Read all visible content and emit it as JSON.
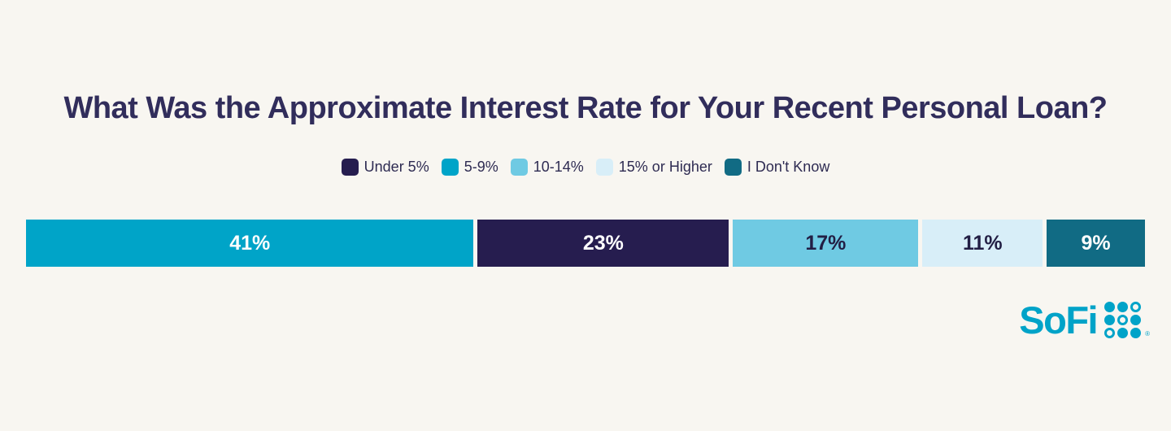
{
  "page": {
    "background": "#F8F6F1"
  },
  "title": {
    "text": "What Was the Approximate Interest Rate for Your Recent Personal Loan?",
    "color": "#312D5B"
  },
  "legend": {
    "position": "top",
    "text_color": "#2E2B52",
    "items": [
      {
        "label": "Under 5%",
        "color": "#261D4F"
      },
      {
        "label": "5-9%",
        "color": "#00A4C8"
      },
      {
        "label": "10-14%",
        "color": "#6FCAE3"
      },
      {
        "label": "15% or Higher",
        "color": "#D8EEF8"
      },
      {
        "label": "I Don't Know",
        "color": "#116B84"
      }
    ]
  },
  "chart_data": {
    "type": "bar",
    "subtype": "horizontal-stacked-percentage",
    "title": "What Was the Approximate Interest Rate for Your Recent Personal Loan?",
    "categories": [
      "5-9%",
      "Under 5%",
      "10-14%",
      "15% or Higher",
      "I Don't Know"
    ],
    "values": [
      41,
      23,
      17,
      11,
      9
    ],
    "unit": "%",
    "axes": "none",
    "grid": false,
    "legend_position": "top",
    "segments": [
      {
        "category": "5-9%",
        "value": 41,
        "label": "41%",
        "color": "#00A4C8",
        "text_color": "#FFFFFF"
      },
      {
        "category": "Under 5%",
        "value": 23,
        "label": "23%",
        "color": "#261D4F",
        "text_color": "#FFFFFF"
      },
      {
        "category": "10-14%",
        "value": 17,
        "label": "17%",
        "color": "#6FCAE3",
        "text_color": "#221E44"
      },
      {
        "category": "15% or Higher",
        "value": 11,
        "label": "11%",
        "color": "#D8EEF8",
        "text_color": "#221E44"
      },
      {
        "category": "I Don't Know",
        "value": 9,
        "label": "9%",
        "color": "#116B84",
        "text_color": "#FFFFFF"
      }
    ]
  },
  "logo": {
    "text": "SoFi",
    "color": "#00A3C8",
    "registered_mark": "®"
  }
}
